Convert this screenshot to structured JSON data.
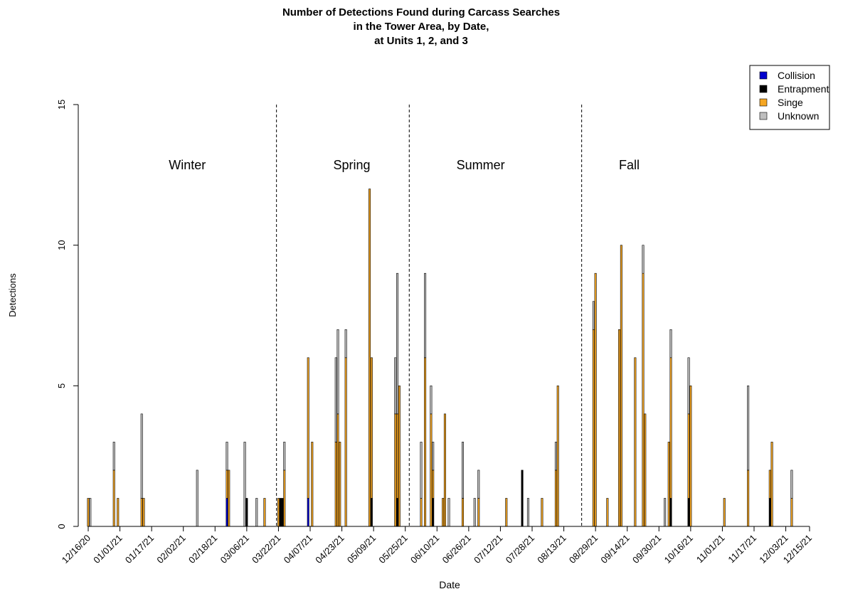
{
  "chart_data": {
    "type": "bar",
    "stacked": true,
    "title": [
      "Number of Detections Found during Carcass Searches",
      "in the Tower Area, by Date,",
      "at Units 1, 2, and 3"
    ],
    "xlabel": "Date",
    "ylabel": "Detections",
    "ylim": [
      0,
      15
    ],
    "yticks": [
      0,
      5,
      10,
      15
    ],
    "xlim": [
      "2020-12-16",
      "2021-12-15"
    ],
    "xtick_labels": [
      "12/16/20",
      "01/01/21",
      "01/17/21",
      "02/02/21",
      "02/18/21",
      "03/06/21",
      "03/22/21",
      "04/07/21",
      "04/23/21",
      "05/09/21",
      "05/25/21",
      "06/10/21",
      "06/26/21",
      "07/12/21",
      "07/28/21",
      "08/13/21",
      "08/29/21",
      "09/14/21",
      "09/30/21",
      "10/16/21",
      "11/01/21",
      "11/17/21",
      "12/03/21",
      "12/15/21"
    ],
    "xtick_dates": [
      "2020-12-16",
      "2021-01-01",
      "2021-01-17",
      "2021-02-02",
      "2021-02-18",
      "2021-03-06",
      "2021-03-22",
      "2021-04-07",
      "2021-04-23",
      "2021-05-09",
      "2021-05-25",
      "2021-06-10",
      "2021-06-26",
      "2021-07-12",
      "2021-07-28",
      "2021-08-13",
      "2021-08-29",
      "2021-09-14",
      "2021-09-30",
      "2021-10-16",
      "2021-11-01",
      "2021-11-17",
      "2021-12-03",
      "2021-12-15"
    ],
    "season_dividers": [
      "2021-03-21",
      "2021-05-27",
      "2021-08-22"
    ],
    "season_labels": [
      {
        "label": "Winter",
        "x": "2021-02-04"
      },
      {
        "label": "Spring",
        "x": "2021-04-28"
      },
      {
        "label": "Summer",
        "x": "2021-07-02"
      },
      {
        "label": "Fall",
        "x": "2021-09-15"
      }
    ],
    "legend_position": "top-right",
    "series": [
      {
        "name": "Collision",
        "color": "#0000cd"
      },
      {
        "name": "Entrapment",
        "color": "#000000"
      },
      {
        "name": "Singe",
        "color": "#f5a623"
      },
      {
        "name": "Unknown",
        "color": "#bebebe"
      }
    ],
    "bars": [
      {
        "x": "2020-12-16",
        "values": [
          0,
          0,
          1,
          0
        ]
      },
      {
        "x": "2020-12-17",
        "values": [
          0,
          0,
          0,
          1
        ]
      },
      {
        "x": "2020-12-29",
        "values": [
          0,
          0,
          2,
          1
        ]
      },
      {
        "x": "2020-12-31",
        "values": [
          0,
          0,
          1,
          0
        ]
      },
      {
        "x": "2021-01-12",
        "values": [
          0,
          0,
          1,
          3
        ]
      },
      {
        "x": "2021-01-13",
        "values": [
          0,
          0,
          1,
          0
        ]
      },
      {
        "x": "2021-02-09",
        "values": [
          0,
          0,
          0,
          2
        ]
      },
      {
        "x": "2021-02-24",
        "values": [
          1,
          0,
          1,
          1
        ]
      },
      {
        "x": "2021-02-25",
        "values": [
          0,
          0,
          2,
          0
        ]
      },
      {
        "x": "2021-03-05",
        "values": [
          0,
          0,
          0,
          3
        ]
      },
      {
        "x": "2021-03-06",
        "values": [
          0,
          1,
          0,
          0
        ]
      },
      {
        "x": "2021-03-11",
        "values": [
          0,
          0,
          0,
          1
        ]
      },
      {
        "x": "2021-03-15",
        "values": [
          0,
          0,
          1,
          0
        ]
      },
      {
        "x": "2021-03-22",
        "values": [
          0,
          0,
          1,
          0
        ]
      },
      {
        "x": "2021-03-23",
        "values": [
          0,
          1,
          0,
          0
        ]
      },
      {
        "x": "2021-03-24",
        "values": [
          0,
          1,
          0,
          0
        ]
      },
      {
        "x": "2021-03-25",
        "values": [
          0,
          0,
          2,
          1
        ]
      },
      {
        "x": "2021-04-06",
        "values": [
          1,
          0,
          5,
          0
        ]
      },
      {
        "x": "2021-04-08",
        "values": [
          0,
          0,
          3,
          0
        ]
      },
      {
        "x": "2021-04-20",
        "values": [
          0,
          0,
          3,
          3
        ]
      },
      {
        "x": "2021-04-21",
        "values": [
          0,
          0,
          4,
          3
        ]
      },
      {
        "x": "2021-04-22",
        "values": [
          0,
          0,
          3,
          0
        ]
      },
      {
        "x": "2021-04-25",
        "values": [
          0,
          0,
          6,
          1
        ]
      },
      {
        "x": "2021-05-07",
        "values": [
          0,
          0,
          12,
          0
        ]
      },
      {
        "x": "2021-05-08",
        "values": [
          0,
          1,
          5,
          0
        ]
      },
      {
        "x": "2021-05-20",
        "values": [
          0,
          0,
          4,
          2
        ]
      },
      {
        "x": "2021-05-21",
        "values": [
          0,
          1,
          3,
          5
        ]
      },
      {
        "x": "2021-05-22",
        "values": [
          0,
          0,
          5,
          0
        ]
      },
      {
        "x": "2021-06-02",
        "values": [
          0,
          0,
          1,
          2
        ]
      },
      {
        "x": "2021-06-04",
        "values": [
          0,
          0,
          6,
          3
        ]
      },
      {
        "x": "2021-06-07",
        "values": [
          0,
          0,
          4,
          1
        ]
      },
      {
        "x": "2021-06-08",
        "values": [
          0,
          1,
          1,
          1
        ]
      },
      {
        "x": "2021-06-13",
        "values": [
          0,
          0,
          1,
          0
        ]
      },
      {
        "x": "2021-06-14",
        "values": [
          0,
          0,
          4,
          0
        ]
      },
      {
        "x": "2021-06-16",
        "values": [
          0,
          0,
          0,
          1
        ]
      },
      {
        "x": "2021-06-23",
        "values": [
          0,
          0,
          1,
          2
        ]
      },
      {
        "x": "2021-06-29",
        "values": [
          0,
          0,
          0,
          1
        ]
      },
      {
        "x": "2021-07-01",
        "values": [
          0,
          0,
          1,
          1
        ]
      },
      {
        "x": "2021-07-15",
        "values": [
          0,
          0,
          1,
          0
        ]
      },
      {
        "x": "2021-07-23",
        "values": [
          0,
          2,
          0,
          0
        ]
      },
      {
        "x": "2021-07-26",
        "values": [
          0,
          0,
          0,
          1
        ]
      },
      {
        "x": "2021-08-02",
        "values": [
          0,
          0,
          1,
          0
        ]
      },
      {
        "x": "2021-08-09",
        "values": [
          0,
          0,
          2,
          1
        ]
      },
      {
        "x": "2021-08-10",
        "values": [
          0,
          0,
          5,
          0
        ]
      },
      {
        "x": "2021-08-28",
        "values": [
          0,
          0,
          7,
          1
        ]
      },
      {
        "x": "2021-08-29",
        "values": [
          0,
          0,
          9,
          0
        ]
      },
      {
        "x": "2021-09-04",
        "values": [
          0,
          0,
          1,
          0
        ]
      },
      {
        "x": "2021-09-10",
        "values": [
          0,
          0,
          7,
          0
        ]
      },
      {
        "x": "2021-09-11",
        "values": [
          0,
          0,
          10,
          0
        ]
      },
      {
        "x": "2021-09-18",
        "values": [
          0,
          0,
          6,
          0
        ]
      },
      {
        "x": "2021-09-22",
        "values": [
          0,
          0,
          9,
          1
        ]
      },
      {
        "x": "2021-09-23",
        "values": [
          0,
          0,
          4,
          0
        ]
      },
      {
        "x": "2021-10-03",
        "values": [
          0,
          0,
          0,
          1
        ]
      },
      {
        "x": "2021-10-05",
        "values": [
          0,
          0,
          3,
          0
        ]
      },
      {
        "x": "2021-10-06",
        "values": [
          0,
          1,
          5,
          1
        ]
      },
      {
        "x": "2021-10-15",
        "values": [
          0,
          1,
          3,
          2
        ]
      },
      {
        "x": "2021-10-16",
        "values": [
          0,
          0,
          5,
          0
        ]
      },
      {
        "x": "2021-11-02",
        "values": [
          0,
          0,
          1,
          0
        ]
      },
      {
        "x": "2021-11-14",
        "values": [
          0,
          0,
          2,
          3
        ]
      },
      {
        "x": "2021-11-25",
        "values": [
          0,
          1,
          1,
          0
        ]
      },
      {
        "x": "2021-11-26",
        "values": [
          0,
          0,
          3,
          0
        ]
      },
      {
        "x": "2021-12-06",
        "values": [
          0,
          0,
          1,
          1
        ]
      }
    ]
  }
}
